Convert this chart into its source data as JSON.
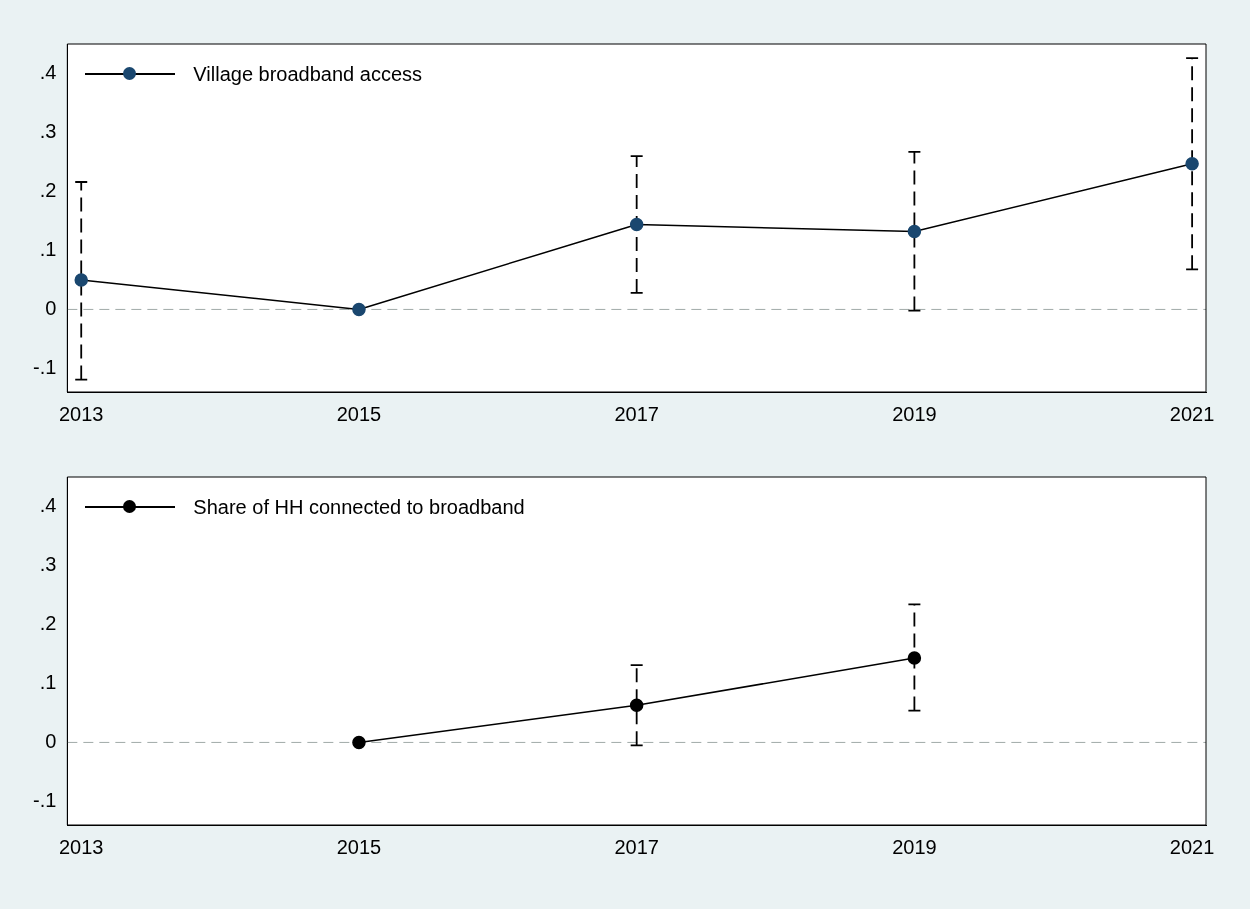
{
  "chart_data": [
    {
      "type": "line",
      "x": [
        2013,
        2015,
        2017,
        2019,
        2021
      ],
      "xlim": [
        2012.9,
        2021.1
      ],
      "xticks": [
        2013,
        2015,
        2017,
        2019,
        2021
      ],
      "ylim": [
        -0.14,
        0.45
      ],
      "yticks": [
        {
          "value": -0.1,
          "label": "-.1"
        },
        0,
        {
          "value": 0.1,
          "label": ".1"
        },
        {
          "value": 0.2,
          "label": ".2"
        },
        {
          "value": 0.3,
          "label": ".3"
        },
        {
          "value": 0.4,
          "label": ".4"
        }
      ],
      "series": [
        {
          "name": "Village broadband access",
          "color": "#1a476f",
          "values": [
            0.05,
            0,
            0.144,
            0.132,
            0.247
          ],
          "errors": [
            [
              -0.119,
              0.216
            ],
            null,
            [
              0.028,
              0.26
            ],
            [
              -0.002,
              0.267
            ],
            [
              0.068,
              0.426
            ]
          ]
        }
      ],
      "ref_lines": [
        {
          "axis": "y",
          "value": 0,
          "color": "#a0aaa8",
          "line_style": "dashed"
        }
      ],
      "grid": false,
      "legend": "top left",
      "marker": "circle",
      "line_style": "solid"
    },
    {
      "type": "line",
      "xlim": [
        2012.9,
        2021.1
      ],
      "xticks": [
        2013,
        2015,
        2017,
        2019,
        2021
      ],
      "ylim": [
        -0.14,
        0.45
      ],
      "yticks": [
        {
          "value": -0.1,
          "label": "-.1"
        },
        0,
        {
          "value": 0.1,
          "label": ".1"
        },
        {
          "value": 0.2,
          "label": ".2"
        },
        {
          "value": 0.3,
          "label": ".3"
        },
        {
          "value": 0.4,
          "label": ".4"
        }
      ],
      "series": [
        {
          "name": "Share of HH connected to broadband",
          "color": "#000000",
          "x": [
            2015,
            2017,
            2019
          ],
          "values": [
            0,
            0.063,
            0.143
          ],
          "errors": [
            null,
            [
              -0.005,
              0.131
            ],
            [
              0.054,
              0.234
            ]
          ]
        }
      ],
      "ref_lines": [
        {
          "axis": "y",
          "value": 0,
          "color": "#a0aaa8",
          "line_style": "dashed"
        }
      ],
      "grid": false,
      "legend": "top left",
      "marker": "circle",
      "line_style": "solid"
    }
  ]
}
